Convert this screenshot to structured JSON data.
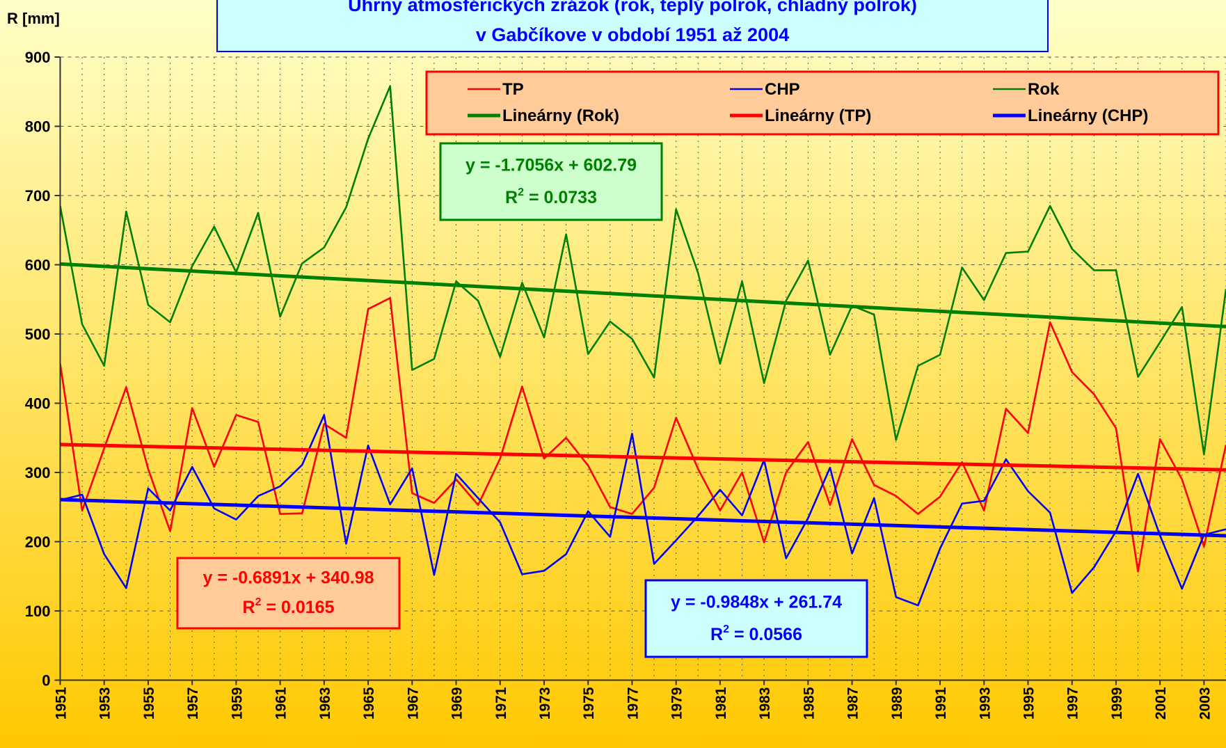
{
  "chart_data": {
    "type": "line",
    "title": "Úhrny atmosférických zrážok (rok, teplý polrok, chladný polrok)",
    "subtitle": "v Gabčíkove v období 1951 až 2004",
    "y_axis_label": "R [mm]",
    "x": [
      1951,
      1952,
      1953,
      1954,
      1955,
      1956,
      1957,
      1958,
      1959,
      1960,
      1961,
      1962,
      1963,
      1964,
      1965,
      1966,
      1967,
      1968,
      1969,
      1970,
      1971,
      1972,
      1973,
      1974,
      1975,
      1976,
      1977,
      1978,
      1979,
      1980,
      1981,
      1982,
      1983,
      1984,
      1985,
      1986,
      1987,
      1988,
      1989,
      1990,
      1991,
      1992,
      1993,
      1994,
      1995,
      1996,
      1997,
      1998,
      1999,
      2000,
      2001,
      2002,
      2003,
      2004
    ],
    "xlim": [
      1951,
      2004
    ],
    "xticks": [
      1951,
      1953,
      1955,
      1957,
      1959,
      1961,
      1963,
      1965,
      1967,
      1969,
      1971,
      1973,
      1975,
      1977,
      1979,
      1981,
      1983,
      1985,
      1987,
      1989,
      1991,
      1993,
      1995,
      1997,
      1999,
      2001,
      2003
    ],
    "ylim": [
      0,
      900
    ],
    "yticks": [
      0,
      100,
      200,
      300,
      400,
      500,
      600,
      700,
      800,
      900
    ],
    "grid": true,
    "series": [
      {
        "name": "TP",
        "color": "#ff0000",
        "width": "thin",
        "values": [
          457,
          245,
          335,
          423,
          305,
          215,
          393,
          308,
          383,
          373,
          240,
          241,
          370,
          350,
          536,
          552,
          270,
          256,
          290,
          253,
          320,
          424,
          320,
          350,
          310,
          250,
          240,
          278,
          379,
          305,
          245,
          300,
          199,
          300,
          344,
          253,
          348,
          282,
          266,
          240,
          265,
          315,
          245,
          392,
          357,
          517,
          445,
          413,
          364,
          157,
          348,
          290,
          193,
          340
        ]
      },
      {
        "name": "CHP",
        "color": "#0000ff",
        "width": "thin",
        "values": [
          260,
          268,
          182,
          133,
          277,
          245,
          308,
          248,
          232,
          266,
          280,
          311,
          383,
          197,
          339,
          254,
          306,
          152,
          298,
          263,
          228,
          153,
          158,
          182,
          244,
          207,
          356,
          168,
          202,
          237,
          275,
          238,
          318,
          176,
          234,
          307,
          183,
          263,
          120,
          108,
          190,
          255,
          259,
          319,
          273,
          242,
          126,
          163,
          215,
          298,
          209,
          132,
          210,
          218
        ]
      },
      {
        "name": "Rok",
        "color": "#008000",
        "width": "thin",
        "values": [
          685,
          514,
          454,
          677,
          542,
          517,
          598,
          655,
          589,
          675,
          525,
          602,
          625,
          683,
          782,
          858,
          448,
          464,
          576,
          548,
          467,
          574,
          495,
          644,
          471,
          518,
          493,
          437,
          680,
          588,
          457,
          576,
          429,
          548,
          606,
          470,
          541,
          528,
          347,
          454,
          470,
          596,
          549,
          617,
          619,
          685,
          623,
          592,
          592,
          438,
          488,
          539,
          326,
          565
        ]
      },
      {
        "name": "Lineárny (Rok)",
        "color": "#008000",
        "width": "thick",
        "x": [
          1951,
          2004
        ],
        "values": [
          601.08,
          510.69
        ]
      },
      {
        "name": "Lineárny (TP)",
        "color": "#ff0000",
        "width": "thick",
        "x": [
          1951,
          2004
        ],
        "values": [
          340.29,
          303.77
        ]
      },
      {
        "name": "Lineárny (CHP)",
        "color": "#0000ff",
        "width": "thick",
        "x": [
          1951,
          2004
        ],
        "values": [
          260.76,
          208.56
        ]
      }
    ],
    "annotations": [
      {
        "equation": "y = -1.7056x + 602.79",
        "r2_symbol": "R",
        "r2_exp": "2",
        "r2_value": "= 0.0733",
        "color": "#008000",
        "fill": "#ccffcc"
      },
      {
        "equation": "y = -0.6891x + 340.98",
        "r2_symbol": "R",
        "r2_exp": "2",
        "r2_value": "= 0.0165",
        "color": "#ff0000",
        "fill": "#ffcc99"
      },
      {
        "equation": "y = -0.9848x + 261.74",
        "r2_symbol": "R",
        "r2_exp": "2",
        "r2_value": "= 0.0566",
        "color": "#0000ff",
        "fill": "#ccffff"
      }
    ]
  }
}
